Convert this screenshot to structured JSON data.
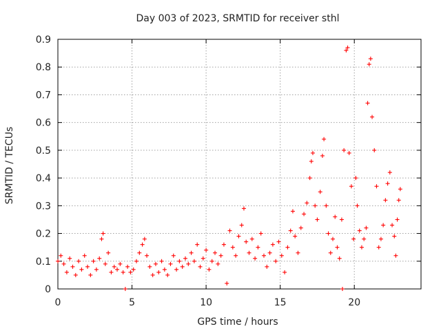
{
  "chart_data": {
    "type": "scatter",
    "title": "Day 003 of 2023, SRMTID for receiver sthl",
    "xlabel": "GPS time / hours",
    "ylabel": "SRMTID / TECUs",
    "xlim": [
      0,
      24.5
    ],
    "ylim": [
      0,
      0.9
    ],
    "x_ticks": [
      "0",
      "5",
      "10",
      "15",
      "20"
    ],
    "y_ticks": [
      "0",
      "0.1",
      "0.2",
      "0.3",
      "0.4",
      "0.5",
      "0.6",
      "0.7",
      "0.8",
      "0.9"
    ],
    "grid": true,
    "marker": "plus",
    "color": "#ff0000",
    "series": [
      {
        "name": "SRMTID sthl",
        "points": [
          [
            0.0,
            0.1
          ],
          [
            0.2,
            0.12
          ],
          [
            0.4,
            0.09
          ],
          [
            0.6,
            0.06
          ],
          [
            0.8,
            0.11
          ],
          [
            1.0,
            0.08
          ],
          [
            1.2,
            0.05
          ],
          [
            1.4,
            0.1
          ],
          [
            1.6,
            0.07
          ],
          [
            1.8,
            0.12
          ],
          [
            2.0,
            0.08
          ],
          [
            2.2,
            0.05
          ],
          [
            2.4,
            0.1
          ],
          [
            2.6,
            0.07
          ],
          [
            2.8,
            0.11
          ],
          [
            2.95,
            0.18
          ],
          [
            3.05,
            0.2
          ],
          [
            3.2,
            0.09
          ],
          [
            3.4,
            0.13
          ],
          [
            3.6,
            0.06
          ],
          [
            3.8,
            0.08
          ],
          [
            4.0,
            0.07
          ],
          [
            4.2,
            0.09
          ],
          [
            4.4,
            0.06
          ],
          [
            4.55,
            0.0
          ],
          [
            4.7,
            0.08
          ],
          [
            4.9,
            0.06
          ],
          [
            5.1,
            0.07
          ],
          [
            5.3,
            0.1
          ],
          [
            5.5,
            0.13
          ],
          [
            5.7,
            0.16
          ],
          [
            5.85,
            0.18
          ],
          [
            6.0,
            0.12
          ],
          [
            6.2,
            0.08
          ],
          [
            6.4,
            0.05
          ],
          [
            6.6,
            0.09
          ],
          [
            6.8,
            0.06
          ],
          [
            7.0,
            0.1
          ],
          [
            7.2,
            0.07
          ],
          [
            7.4,
            0.05
          ],
          [
            7.6,
            0.09
          ],
          [
            7.8,
            0.12
          ],
          [
            8.0,
            0.07
          ],
          [
            8.2,
            0.1
          ],
          [
            8.4,
            0.08
          ],
          [
            8.6,
            0.11
          ],
          [
            8.8,
            0.09
          ],
          [
            9.0,
            0.13
          ],
          [
            9.2,
            0.1
          ],
          [
            9.4,
            0.16
          ],
          [
            9.6,
            0.08
          ],
          [
            9.8,
            0.11
          ],
          [
            10.0,
            0.14
          ],
          [
            10.2,
            0.07
          ],
          [
            10.4,
            0.1
          ],
          [
            10.6,
            0.13
          ],
          [
            10.8,
            0.09
          ],
          [
            11.0,
            0.12
          ],
          [
            11.2,
            0.16
          ],
          [
            11.4,
            0.02
          ],
          [
            11.6,
            0.21
          ],
          [
            11.8,
            0.15
          ],
          [
            12.0,
            0.12
          ],
          [
            12.2,
            0.19
          ],
          [
            12.4,
            0.23
          ],
          [
            12.55,
            0.29
          ],
          [
            12.7,
            0.17
          ],
          [
            12.9,
            0.13
          ],
          [
            13.1,
            0.18
          ],
          [
            13.3,
            0.11
          ],
          [
            13.5,
            0.15
          ],
          [
            13.7,
            0.2
          ],
          [
            13.9,
            0.12
          ],
          [
            14.1,
            0.08
          ],
          [
            14.3,
            0.13
          ],
          [
            14.5,
            0.16
          ],
          [
            14.7,
            0.1
          ],
          [
            14.9,
            0.17
          ],
          [
            15.1,
            0.12
          ],
          [
            15.3,
            0.06
          ],
          [
            15.5,
            0.15
          ],
          [
            15.7,
            0.21
          ],
          [
            15.85,
            0.28
          ],
          [
            16.0,
            0.19
          ],
          [
            16.2,
            0.13
          ],
          [
            16.4,
            0.22
          ],
          [
            16.6,
            0.27
          ],
          [
            16.8,
            0.31
          ],
          [
            17.0,
            0.4
          ],
          [
            17.1,
            0.46
          ],
          [
            17.2,
            0.49
          ],
          [
            17.35,
            0.3
          ],
          [
            17.5,
            0.25
          ],
          [
            17.7,
            0.35
          ],
          [
            17.85,
            0.48
          ],
          [
            17.95,
            0.54
          ],
          [
            18.1,
            0.3
          ],
          [
            18.25,
            0.2
          ],
          [
            18.4,
            0.13
          ],
          [
            18.55,
            0.18
          ],
          [
            18.7,
            0.26
          ],
          [
            18.85,
            0.15
          ],
          [
            19.0,
            0.11
          ],
          [
            19.15,
            0.25
          ],
          [
            19.2,
            0.0
          ],
          [
            19.3,
            0.5
          ],
          [
            19.45,
            0.86
          ],
          [
            19.55,
            0.87
          ],
          [
            19.65,
            0.49
          ],
          [
            19.8,
            0.37
          ],
          [
            19.95,
            0.18
          ],
          [
            20.1,
            0.4
          ],
          [
            20.2,
            0.3
          ],
          [
            20.35,
            0.21
          ],
          [
            20.5,
            0.15
          ],
          [
            20.65,
            0.18
          ],
          [
            20.8,
            0.22
          ],
          [
            20.9,
            0.67
          ],
          [
            21.0,
            0.81
          ],
          [
            21.1,
            0.83
          ],
          [
            21.2,
            0.62
          ],
          [
            21.35,
            0.5
          ],
          [
            21.5,
            0.37
          ],
          [
            21.65,
            0.15
          ],
          [
            21.8,
            0.18
          ],
          [
            21.95,
            0.23
          ],
          [
            22.1,
            0.32
          ],
          [
            22.25,
            0.38
          ],
          [
            22.4,
            0.42
          ],
          [
            22.55,
            0.23
          ],
          [
            22.7,
            0.19
          ],
          [
            22.8,
            0.12
          ],
          [
            22.9,
            0.25
          ],
          [
            23.0,
            0.32
          ],
          [
            23.1,
            0.36
          ]
        ]
      }
    ]
  }
}
